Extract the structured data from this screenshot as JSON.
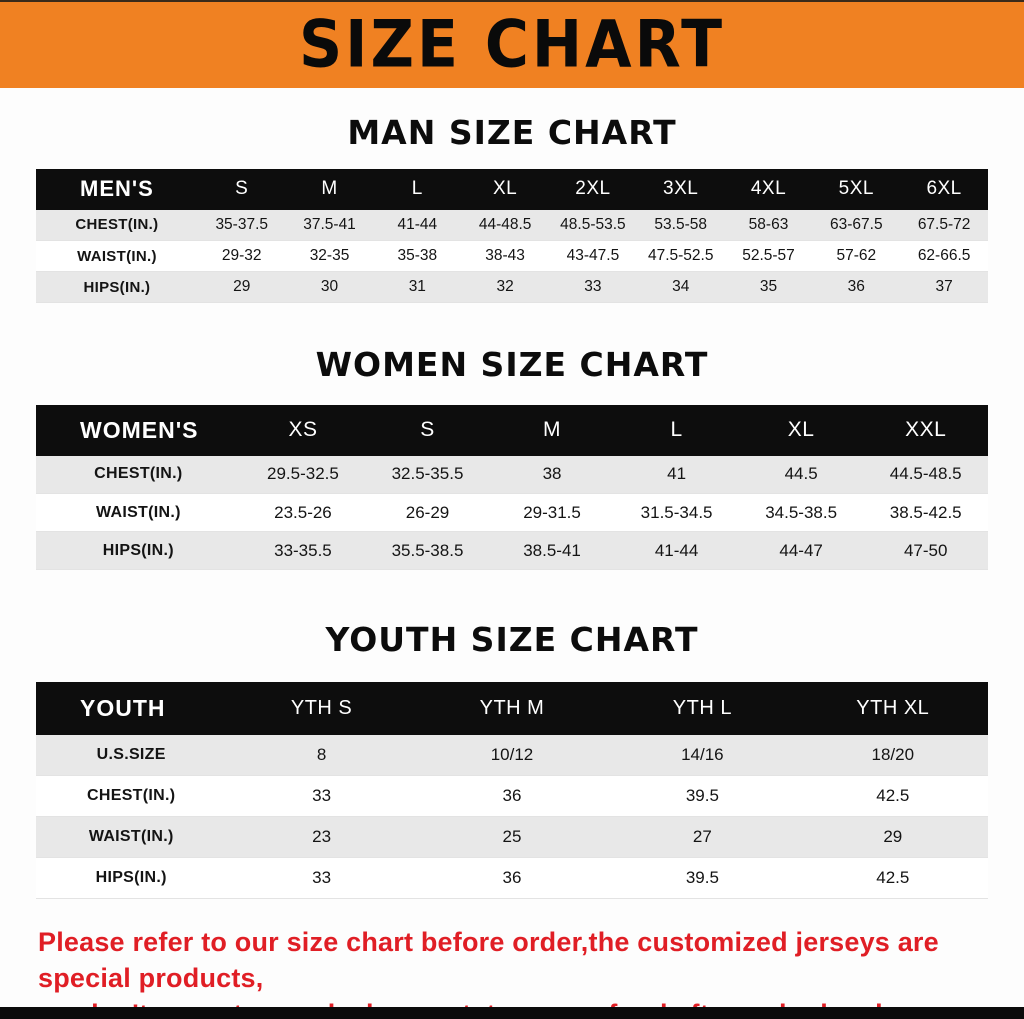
{
  "banner": {
    "title": "SIZE CHART"
  },
  "sections": [
    {
      "id": "men",
      "heading": "MAN SIZE CHART",
      "table": {
        "header": [
          "MEN'S",
          "S",
          "M",
          "L",
          "XL",
          "2XL",
          "3XL",
          "4XL",
          "5XL",
          "6XL"
        ],
        "rows": [
          [
            "CHEST(IN.)",
            "35-37.5",
            "37.5-41",
            "41-44",
            "44-48.5",
            "48.5-53.5",
            "53.5-58",
            "58-63",
            "63-67.5",
            "67.5-72"
          ],
          [
            "WAIST(IN.)",
            "29-32",
            "32-35",
            "35-38",
            "38-43",
            "43-47.5",
            "47.5-52.5",
            "52.5-57",
            "57-62",
            "62-66.5"
          ],
          [
            "HIPS(IN.)",
            "29",
            "30",
            "31",
            "32",
            "33",
            "34",
            "35",
            "36",
            "37"
          ]
        ]
      }
    },
    {
      "id": "women",
      "heading": "WOMEN SIZE CHART",
      "table": {
        "header": [
          "WOMEN'S",
          "XS",
          "S",
          "M",
          "L",
          "XL",
          "XXL"
        ],
        "rows": [
          [
            "CHEST(IN.)",
            "29.5-32.5",
            "32.5-35.5",
            "38",
            "41",
            "44.5",
            "44.5-48.5"
          ],
          [
            "WAIST(IN.)",
            "23.5-26",
            "26-29",
            "29-31.5",
            "31.5-34.5",
            "34.5-38.5",
            "38.5-42.5"
          ],
          [
            "HIPS(IN.)",
            "33-35.5",
            "35.5-38.5",
            "38.5-41",
            "41-44",
            "44-47",
            "47-50"
          ]
        ]
      }
    },
    {
      "id": "youth",
      "heading": "YOUTH SIZE CHART",
      "table": {
        "header": [
          "YOUTH",
          "YTH S",
          "YTH M",
          "YTH L",
          "YTH XL"
        ],
        "rows": [
          [
            "U.S.SIZE",
            "8",
            "10/12",
            "14/16",
            "18/20"
          ],
          [
            "CHEST(IN.)",
            "33",
            "36",
            "39.5",
            "42.5"
          ],
          [
            "WAIST(IN.)",
            "23",
            "25",
            "27",
            "29"
          ],
          [
            "HIPS(IN.)",
            "33",
            "36",
            "39.5",
            "42.5"
          ]
        ]
      }
    }
  ],
  "footer": {
    "note_line1": "Please refer to our size chart before order,the customized jerseys are special products,",
    "note_line2": "we don't accept cancel, change, teturn or refund after order has been placed!"
  },
  "colors": {
    "banner_bg": "#f08122",
    "header_bg": "#0d0d0d",
    "stripe": "#e8e8e8",
    "note_red": "#e01e25"
  }
}
